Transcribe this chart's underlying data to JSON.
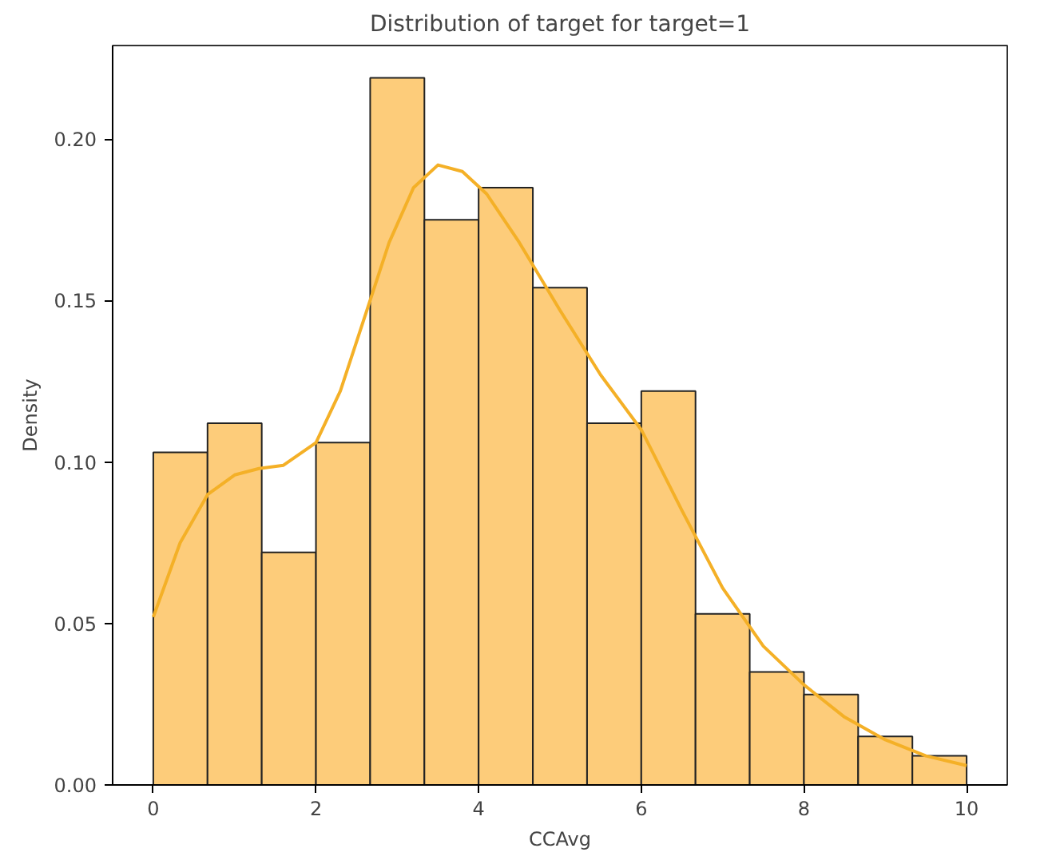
{
  "chart_data": {
    "type": "histogram",
    "title": "Distribution of target for target=1",
    "xlabel": "CCAvg",
    "ylabel": "Density",
    "bins": [
      0,
      0.6667,
      1.3333,
      2,
      2.6667,
      3.3333,
      4,
      4.6667,
      5.3333,
      6,
      6.6667,
      7.3333,
      8,
      8.6667,
      9.3333,
      10
    ],
    "values": [
      0.103,
      0.112,
      0.072,
      0.106,
      0.219,
      0.175,
      0.185,
      0.154,
      0.112,
      0.122,
      0.053,
      0.035,
      0.028,
      0.015,
      0.009
    ],
    "color": "#fdcc7a",
    "series": [
      {
        "type": "line",
        "color": "#f4b027",
        "x": [
          0,
          0.33,
          0.67,
          1.0,
          1.3,
          1.6,
          2.0,
          2.3,
          2.6,
          2.9,
          3.2,
          3.5,
          3.8,
          4.1,
          4.5,
          5.0,
          5.5,
          6.0,
          6.5,
          7.0,
          7.5,
          8.0,
          8.5,
          9.0,
          9.5,
          10.0
        ],
        "values": [
          0.052,
          0.075,
          0.09,
          0.096,
          0.098,
          0.099,
          0.106,
          0.122,
          0.145,
          0.168,
          0.185,
          0.192,
          0.19,
          0.183,
          0.168,
          0.147,
          0.127,
          0.11,
          0.085,
          0.061,
          0.043,
          0.031,
          0.021,
          0.014,
          0.009,
          0.006
        ]
      }
    ],
    "xlim": [
      -0.5,
      10.5
    ],
    "ylim": [
      0,
      0.229
    ],
    "xticks": [
      0,
      2,
      4,
      6,
      8,
      10
    ],
    "yticks": [
      {
        "value": 0,
        "label": "0.00"
      },
      {
        "value": 0.05,
        "label": "0.05"
      },
      {
        "value": 0.1,
        "label": "0.10"
      },
      {
        "value": 0.15,
        "label": "0.15"
      },
      {
        "value": 0.2,
        "label": "0.20"
      }
    ],
    "grid": false
  }
}
